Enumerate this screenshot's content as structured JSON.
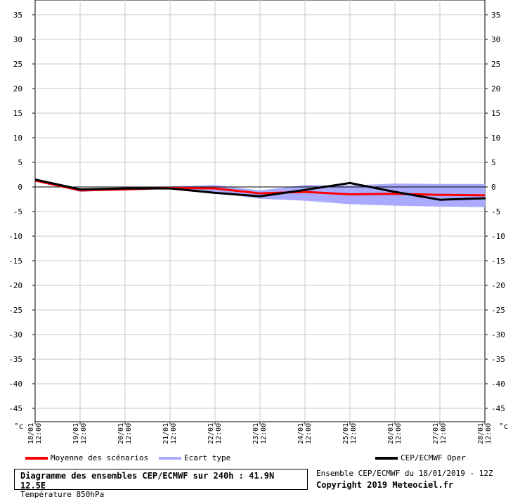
{
  "chart_data": {
    "type": "line",
    "ylim": [
      -48,
      36
    ],
    "y_ticks": [
      35,
      30,
      25,
      20,
      15,
      10,
      5,
      0,
      -5,
      -10,
      -15,
      -20,
      -25,
      -30,
      -35,
      -40,
      -45
    ],
    "unit": "°c",
    "x_labels": [
      {
        "date": "18/01",
        "hour": "12:00"
      },
      {
        "date": "19/01",
        "hour": "12:00"
      },
      {
        "date": "20/01",
        "hour": "12:00"
      },
      {
        "date": "21/01",
        "hour": "12:00"
      },
      {
        "date": "22/01",
        "hour": "12:00"
      },
      {
        "date": "23/01",
        "hour": "12:00"
      },
      {
        "date": "24/01",
        "hour": "12:00"
      },
      {
        "date": "25/01",
        "hour": "12:00"
      },
      {
        "date": "26/01",
        "hour": "12:00"
      },
      {
        "date": "27/01",
        "hour": "12:00"
      },
      {
        "date": "28/01",
        "hour": "12:00"
      }
    ],
    "series": [
      {
        "name": "Ecart type",
        "type": "band",
        "color": "#aaaaff",
        "x": [
          0,
          1,
          2,
          3,
          4,
          5,
          6,
          7,
          8,
          9,
          10
        ],
        "upper": [
          1.5,
          -0.5,
          -0.3,
          0.1,
          0.4,
          -0.7,
          0.4,
          0.3,
          0.7,
          0.6,
          0.6
        ],
        "lower": [
          1.3,
          -1.0,
          -0.6,
          -0.3,
          -1.2,
          -2.4,
          -2.8,
          -3.5,
          -3.8,
          -4.0,
          -4.1
        ]
      },
      {
        "name": "Moyenne des scénarios",
        "type": "line",
        "color": "#ff0000",
        "x": [
          0,
          1,
          2,
          3,
          4,
          5,
          6,
          7,
          8,
          9,
          10
        ],
        "values": [
          1.3,
          -0.7,
          -0.5,
          -0.2,
          -0.3,
          -1.3,
          -1.0,
          -1.5,
          -1.4,
          -1.6,
          -1.7
        ]
      },
      {
        "name": "CEP/ECMWF Oper",
        "type": "line",
        "color": "#000000",
        "x": [
          0,
          1,
          2,
          3,
          4,
          5,
          6,
          7,
          8,
          9,
          10,
          10.5,
          11
        ],
        "values": [
          1.5,
          -0.5,
          -0.3,
          -0.3,
          -1.2,
          -1.9,
          -0.6,
          0.8,
          -1.0,
          -2.6,
          -2.3,
          -2.3,
          -2.2
        ]
      }
    ]
  },
  "legend": [
    {
      "label": "Moyenne des scénarios",
      "color": "#ff0000"
    },
    {
      "label": "Ecart type",
      "color": "#aaaaff"
    },
    {
      "label": "CEP/ECMWF Oper",
      "color": "#000000"
    }
  ],
  "title": "Diagramme des ensembles CEP/ECMWF sur 240h : 41.9N 12.5E",
  "subtitle": "Température 850hPa",
  "run_info": "Ensemble CEP/ECMWF du 18/01/2019 - 12Z",
  "copyright": "Copyright 2019 Meteociel.fr"
}
